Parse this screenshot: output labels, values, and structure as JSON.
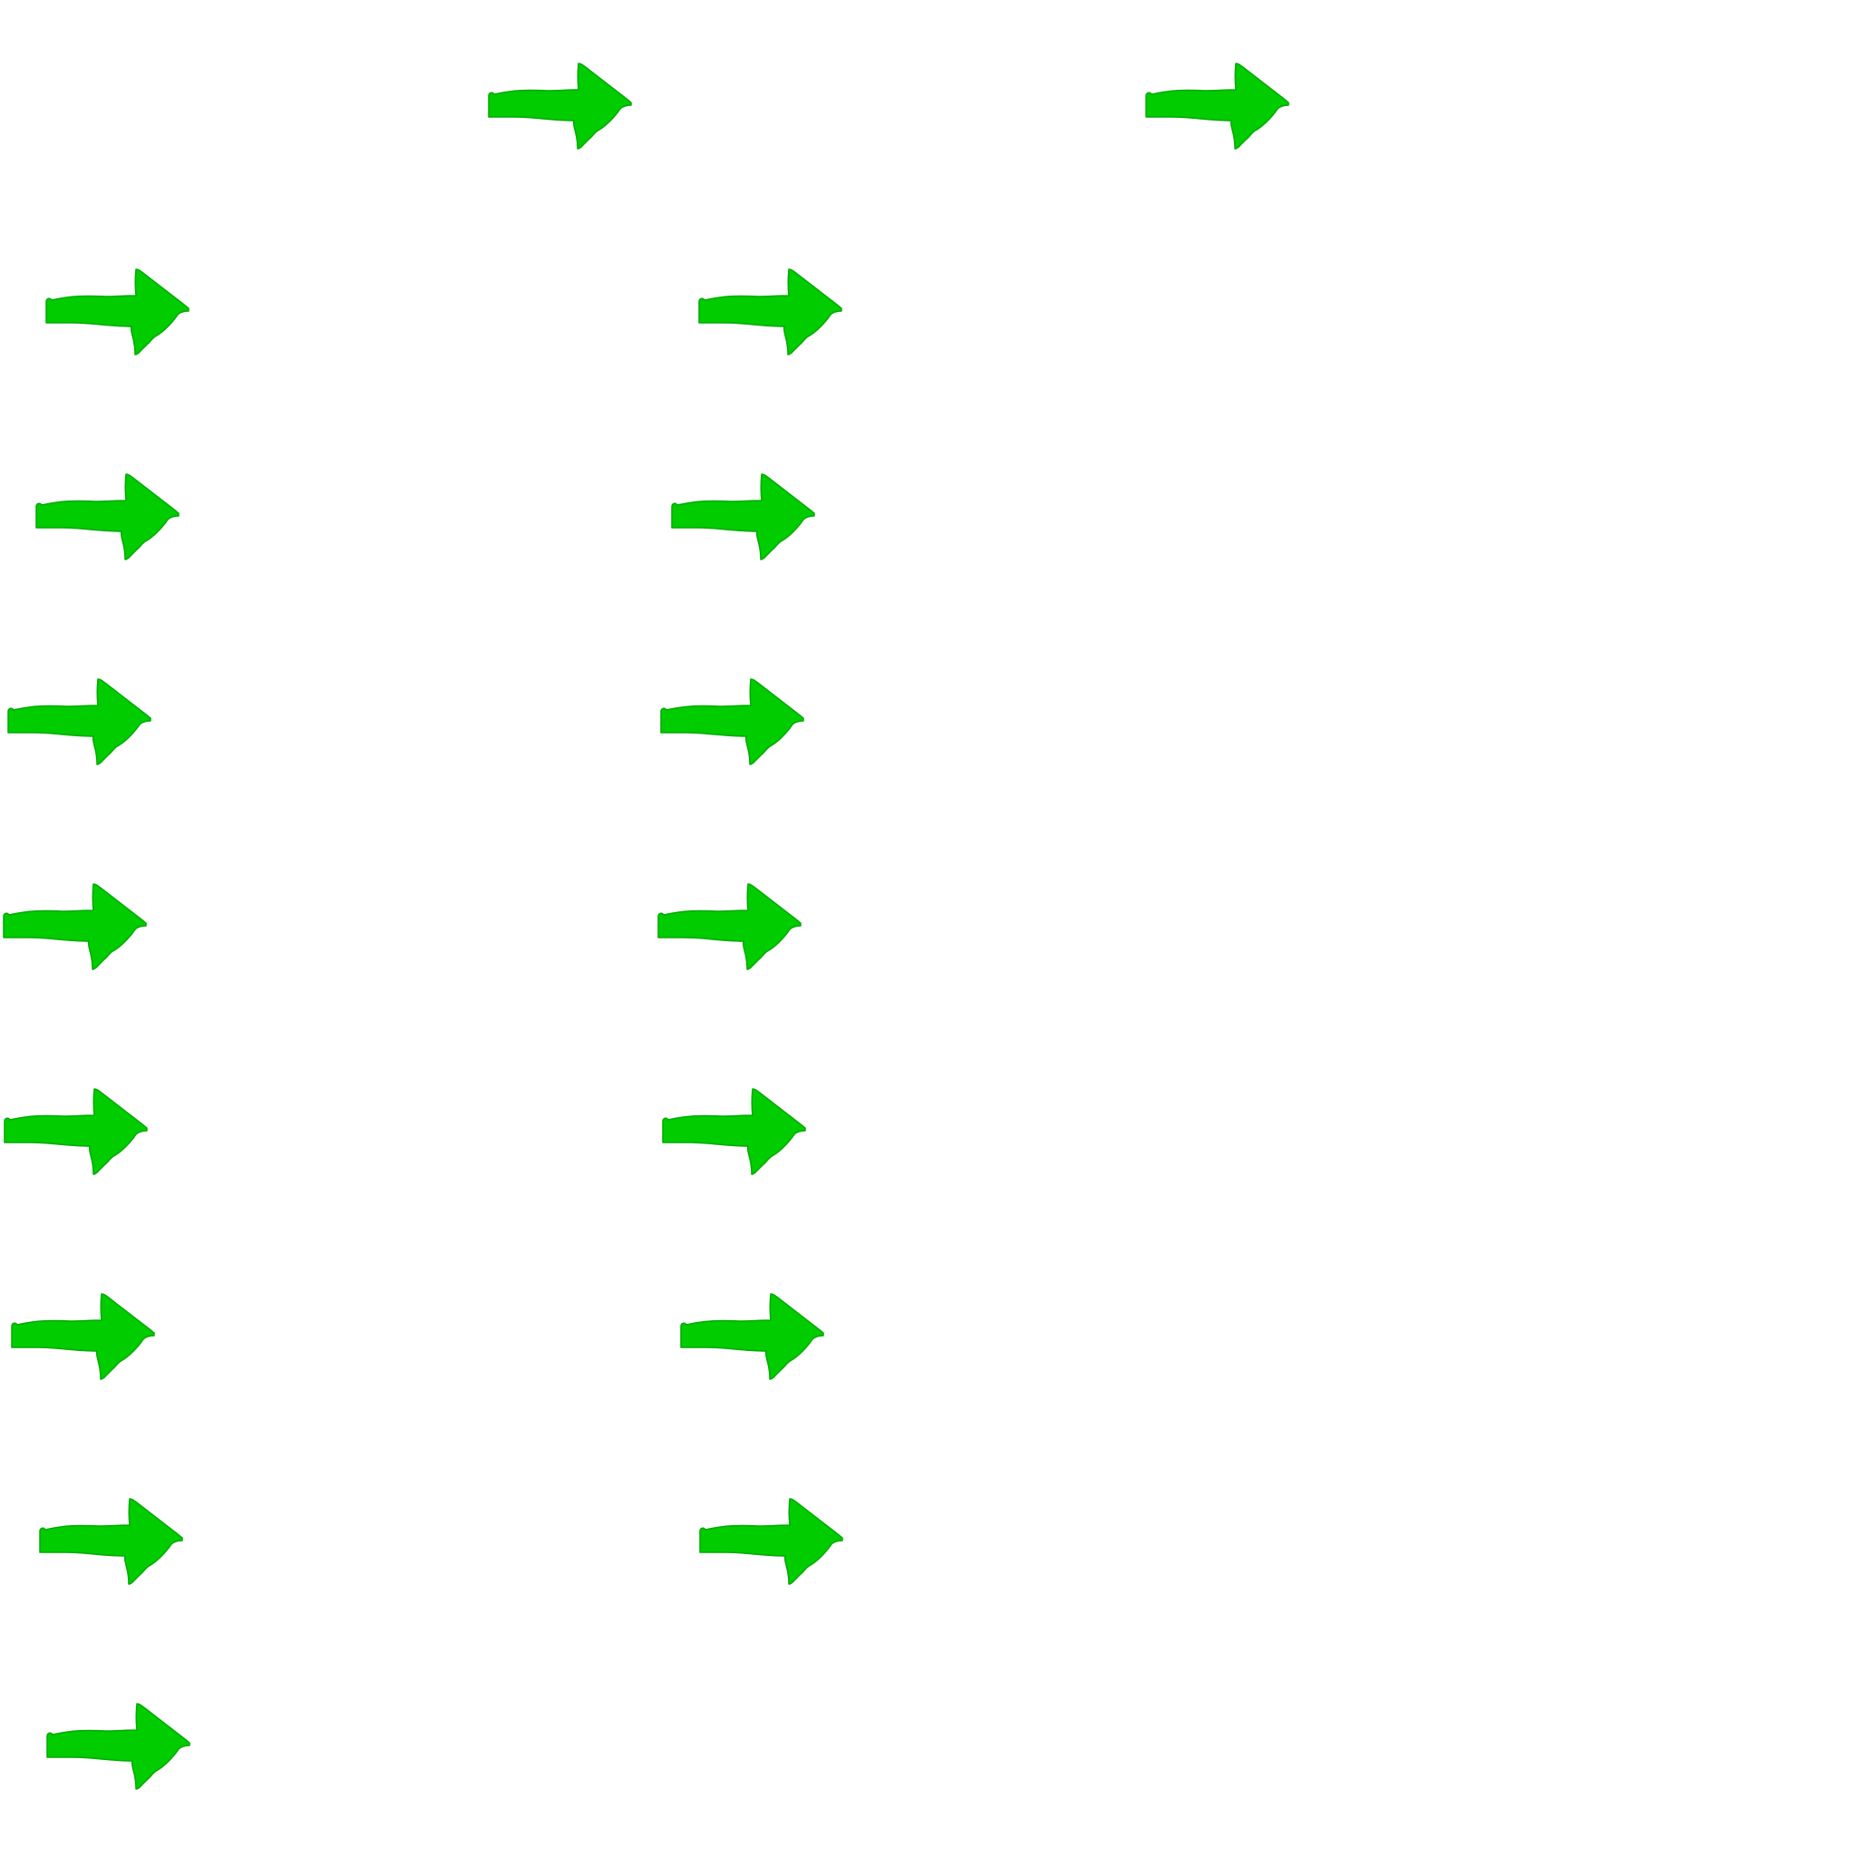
{
  "colors": {
    "background": "#ffffff",
    "arrow_fill": "#00cc00",
    "arrow_stroke": "#00aa00"
  },
  "icon_name": "right-arrow-icon",
  "arrows": [
    {
      "group": "top-row",
      "index": 1
    },
    {
      "group": "top-row",
      "index": 2
    },
    {
      "group": "left-column",
      "index": 1
    },
    {
      "group": "middle-column",
      "index": 1
    },
    {
      "group": "left-column",
      "index": 2
    },
    {
      "group": "middle-column",
      "index": 2
    },
    {
      "group": "left-column",
      "index": 3
    },
    {
      "group": "middle-column",
      "index": 3
    },
    {
      "group": "left-column",
      "index": 4
    },
    {
      "group": "middle-column",
      "index": 4
    },
    {
      "group": "left-column",
      "index": 5
    },
    {
      "group": "middle-column",
      "index": 5
    },
    {
      "group": "left-column",
      "index": 6
    },
    {
      "group": "middle-column",
      "index": 6
    },
    {
      "group": "left-column",
      "index": 7
    },
    {
      "group": "middle-column",
      "index": 7
    },
    {
      "group": "left-column",
      "index": 8
    }
  ]
}
